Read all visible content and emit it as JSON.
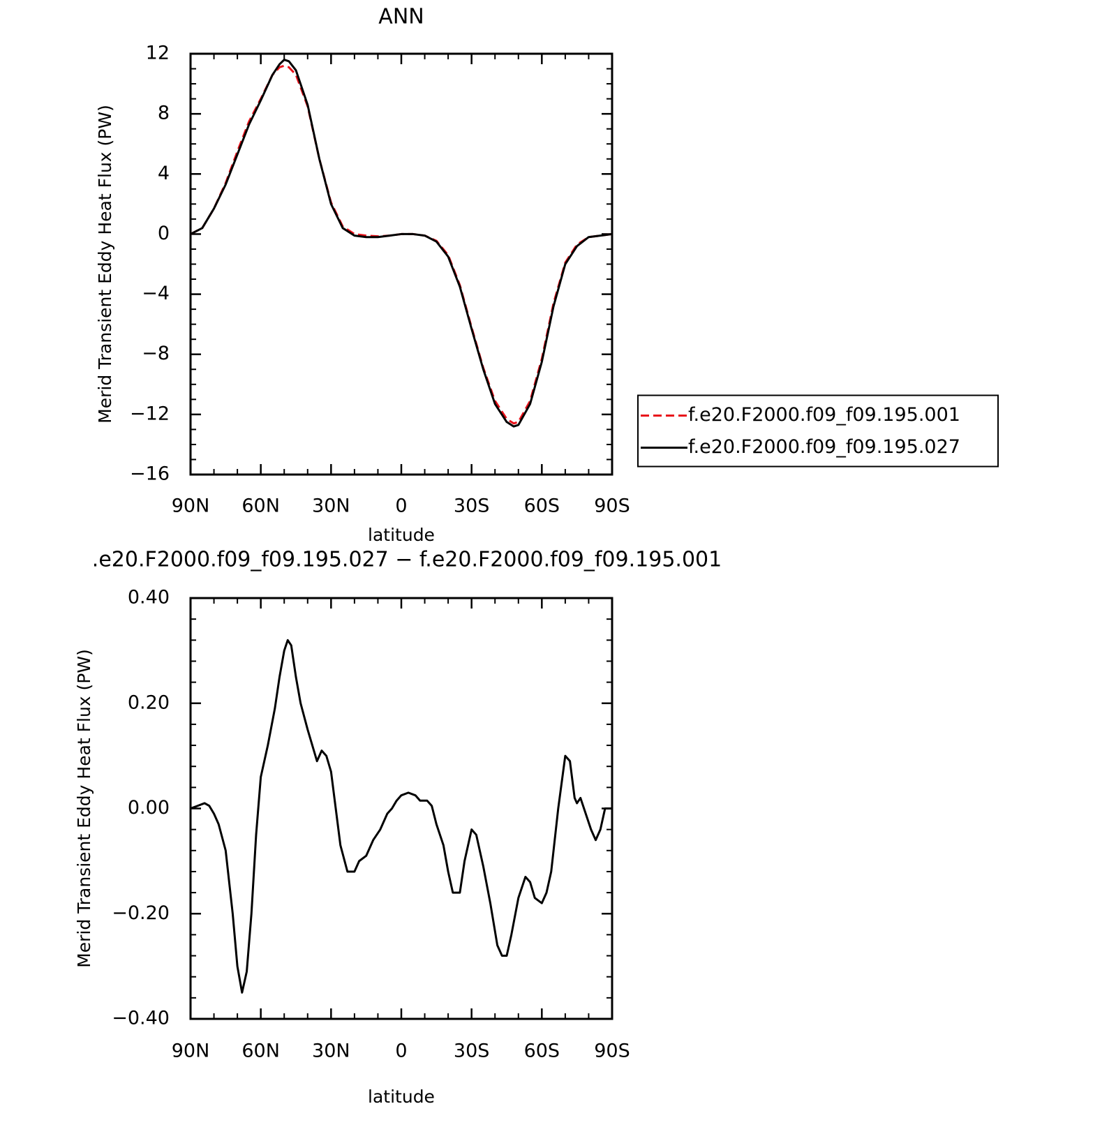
{
  "chart_data": [
    {
      "type": "line",
      "title": "ANN",
      "x_label": "latitude",
      "y_label": "Merid Transient Eddy Heat Flux (PW)",
      "x": [
        90,
        85,
        80,
        75,
        70,
        65,
        60,
        55,
        52,
        50,
        48,
        45,
        40,
        35,
        30,
        25,
        20,
        15,
        10,
        5,
        0,
        -5,
        -10,
        -15,
        -20,
        -25,
        -30,
        -35,
        -40,
        -45,
        -48,
        -50,
        -55,
        -60,
        -65,
        -70,
        -75,
        -80,
        -85,
        -90
      ],
      "series": [
        {
          "name": "f.e20.F2000.f09_f09.195.001",
          "color": "#e8121a",
          "line_style": "dashed",
          "values": [
            0,
            0.4,
            1.7,
            3.4,
            5.5,
            7.5,
            9.0,
            10.6,
            11.1,
            11.2,
            11.1,
            10.6,
            8.5,
            5.0,
            2.1,
            0.5,
            0,
            -0.1,
            -0.15,
            -0.1,
            0,
            0,
            -0.1,
            -0.45,
            -1.4,
            -3.4,
            -6.2,
            -8.9,
            -11.1,
            -12.3,
            -12.6,
            -12.5,
            -11.1,
            -8.3,
            -4.6,
            -1.9,
            -0.7,
            -0.2,
            -0.1,
            0
          ]
        },
        {
          "name": "f.e20.F2000.f09_f09.195.027",
          "color": "#000000",
          "line_style": "solid",
          "values": [
            0,
            0.4,
            1.7,
            3.3,
            5.3,
            7.3,
            8.9,
            10.6,
            11.3,
            11.6,
            11.5,
            10.9,
            8.6,
            5.0,
            2.0,
            0.4,
            -0.1,
            -0.2,
            -0.2,
            -0.1,
            0,
            0,
            -0.1,
            -0.5,
            -1.5,
            -3.5,
            -6.3,
            -9.0,
            -11.3,
            -12.5,
            -12.8,
            -12.7,
            -11.3,
            -8.5,
            -4.8,
            -2.0,
            -0.8,
            -0.2,
            -0.1,
            0
          ]
        }
      ],
      "xlim": [
        90,
        -90
      ],
      "xticks": [
        {
          "value": 90,
          "label": "90N"
        },
        {
          "value": 60,
          "label": "60N"
        },
        {
          "value": 30,
          "label": "30N"
        },
        0,
        {
          "value": -30,
          "label": "30S"
        },
        {
          "value": -60,
          "label": "60S"
        },
        {
          "value": -90,
          "label": "90S"
        }
      ],
      "ylim": [
        -16,
        12
      ],
      "yticks": [
        {
          "value": -16,
          "label": "−16"
        },
        {
          "value": -12,
          "label": "−12"
        },
        {
          "value": -8,
          "label": "−8"
        },
        {
          "value": -4,
          "label": "−4"
        },
        0,
        4,
        8,
        12
      ],
      "legend": "right"
    },
    {
      "type": "line",
      "title": ".e20.F2000.f09_f09.195.027 − f.e20.F2000.f09_f09.195.001",
      "x_label": "latitude",
      "y_label": "Merid Transient Eddy Heat Flux (PW)",
      "x": [
        90,
        87,
        84,
        82,
        80,
        78,
        75,
        72,
        70,
        68,
        66,
        64,
        62,
        60,
        57,
        54,
        52,
        50,
        48.5,
        47,
        45,
        43,
        40,
        38,
        36,
        34,
        32,
        30,
        28,
        26,
        23,
        20,
        18,
        15,
        12,
        9,
        6,
        4,
        2,
        0,
        -3,
        -6,
        -8,
        -11,
        -13,
        -15,
        -18,
        -20,
        -22,
        -25,
        -27,
        -30,
        -32,
        -35,
        -38,
        -41,
        -43,
        -45,
        -47,
        -50,
        -53,
        -55,
        -57,
        -60,
        -62,
        -64,
        -67,
        -70,
        -72,
        -74,
        -75,
        -76.5,
        -78,
        -81,
        -83,
        -85,
        -87,
        -90
      ],
      "values": [
        0,
        0.005,
        0.01,
        0.005,
        -0.01,
        -0.03,
        -0.08,
        -0.2,
        -0.3,
        -0.35,
        -0.31,
        -0.2,
        -0.05,
        0.06,
        0.12,
        0.19,
        0.25,
        0.3,
        0.32,
        0.31,
        0.25,
        0.2,
        0.15,
        0.12,
        0.09,
        0.11,
        0.1,
        0.07,
        0,
        -0.07,
        -0.12,
        -0.12,
        -0.1,
        -0.09,
        -0.06,
        -0.04,
        -0.01,
        0,
        0.015,
        0.025,
        0.03,
        0.025,
        0.015,
        0.015,
        0.005,
        -0.03,
        -0.07,
        -0.12,
        -0.16,
        -0.16,
        -0.1,
        -0.04,
        -0.05,
        -0.11,
        -0.18,
        -0.26,
        -0.28,
        -0.28,
        -0.24,
        -0.17,
        -0.13,
        -0.14,
        -0.17,
        -0.18,
        -0.16,
        -0.12,
        0,
        0.1,
        0.09,
        0.02,
        0.01,
        0.02,
        0,
        -0.04,
        -0.06,
        -0.04,
        0,
        0
      ],
      "color": "#000000",
      "xlim": [
        90,
        -90
      ],
      "xticks": [
        {
          "value": 90,
          "label": "90N"
        },
        {
          "value": 60,
          "label": "60N"
        },
        {
          "value": 30,
          "label": "30N"
        },
        0,
        {
          "value": -30,
          "label": "30S"
        },
        {
          "value": -60,
          "label": "60S"
        },
        {
          "value": -90,
          "label": "90S"
        }
      ],
      "ylim": [
        -0.4,
        0.4
      ],
      "yticks": [
        {
          "value": -0.4,
          "label": "−0.40"
        },
        {
          "value": -0.2,
          "label": "−0.20"
        },
        {
          "value": 0,
          "label": "0.00"
        },
        {
          "value": 0.2,
          "label": "0.20"
        },
        {
          "value": 0.4,
          "label": "0.40"
        }
      ]
    }
  ]
}
